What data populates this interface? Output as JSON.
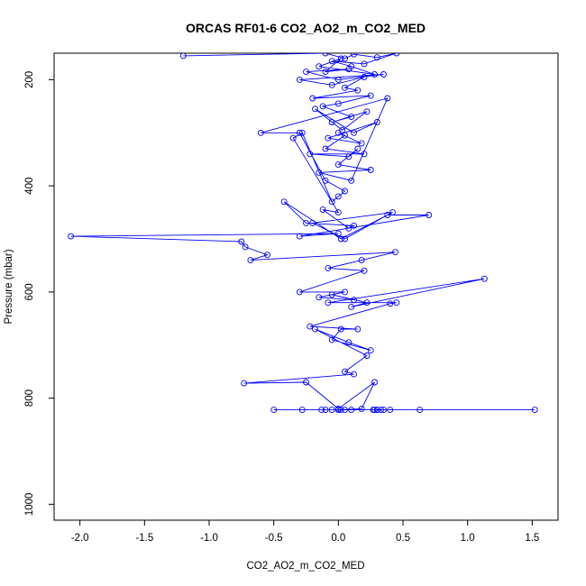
{
  "chart_data": {
    "type": "line",
    "title": "ORCAS RF01-6 CO2_AO2_m_CO2_MED",
    "xlabel": "CO2_AO2_m_CO2_MED",
    "ylabel": "Pressure (mbar)",
    "xlim": [
      -2.2,
      1.7
    ],
    "ylim": [
      1030,
      150
    ],
    "y_reversed": true,
    "xticks": [
      -2.0,
      -1.5,
      -1.0,
      -0.5,
      0.0,
      0.5,
      1.0,
      1.5
    ],
    "xtick_labels": [
      "-2.0",
      "-1.5",
      "-1.0",
      "-0.5",
      "0.0",
      "0.5",
      "1.0",
      "1.5"
    ],
    "yticks": [
      200,
      400,
      600,
      800,
      1000
    ],
    "ytick_labels": [
      "200",
      "400",
      "600",
      "800",
      "1000"
    ],
    "series_color": "#0000ff",
    "marker": "open-circle",
    "grid": false,
    "series": [
      {
        "x": [
          -1.2,
          -0.1,
          0.05,
          0.12,
          0.3,
          0.45,
          0.2,
          -0.05,
          0.1,
          0.28,
          -0.15,
          0.02,
          -0.1,
          0.08,
          -0.25,
          0.0,
          0.35,
          -0.3,
          -0.05,
          0.2,
          0.05,
          0.15,
          -0.2,
          0.25,
          0.0,
          -0.12,
          0.1,
          -0.05,
          0.22,
          0.03,
          -0.18,
          0.12,
          0.3,
          -0.08,
          0.18,
          0.0,
          0.05,
          -0.1,
          0.2,
          -0.22,
          0.08,
          0.15,
          0.0,
          0.25,
          -0.15,
          0.1,
          0.38,
          -0.6,
          -0.3,
          -0.1,
          0.05,
          0.0,
          -0.05,
          -0.28,
          -0.35,
          0.0,
          -0.12,
          0.08,
          0.12,
          -0.25,
          -0.42,
          0.02,
          0.42,
          -0.2,
          0.05,
          0.38,
          0.7,
          -0.3,
          0.0,
          -2.07,
          -0.75,
          -0.72,
          -0.55,
          -0.68,
          0.44,
          0.18,
          -0.08,
          0.2,
          -0.3,
          0.05,
          -0.15,
          0.12,
          -0.05,
          0.22,
          0.1,
          1.13,
          -0.08,
          0.45,
          0.4,
          -0.22,
          0.15,
          0.02,
          -0.05,
          0.25,
          0.08,
          -0.18,
          0.22,
          0.05,
          0.12,
          -0.73,
          -0.25,
          0.0,
          0.28,
          0.18,
          0.0,
          -0.5,
          -0.28,
          0.3,
          0.63,
          1.52,
          0.35,
          0.28,
          -0.13,
          -0.05,
          0.02,
          0.33,
          0.1,
          0.4,
          -0.1,
          0.05,
          0.3,
          0.27
        ],
        "y": [
          155,
          150,
          160,
          152,
          158,
          150,
          170,
          165,
          175,
          190,
          175,
          160,
          185,
          180,
          185,
          200,
          190,
          200,
          210,
          195,
          215,
          220,
          235,
          230,
          245,
          250,
          270,
          280,
          260,
          295,
          255,
          300,
          280,
          310,
          320,
          300,
          305,
          330,
          340,
          340,
          345,
          330,
          360,
          370,
          375,
          390,
          235,
          300,
          300,
          390,
          410,
          420,
          430,
          300,
          310,
          450,
          445,
          480,
          475,
          470,
          430,
          500,
          450,
          470,
          500,
          455,
          455,
          495,
          490,
          495,
          505,
          515,
          530,
          540,
          525,
          540,
          555,
          560,
          600,
          600,
          610,
          615,
          605,
          620,
          628,
          575,
          620,
          620,
          622,
          665,
          670,
          670,
          690,
          710,
          695,
          670,
          720,
          750,
          755,
          772,
          770,
          820,
          770,
          820,
          822,
          822,
          822,
          822,
          822,
          822,
          822,
          822,
          822,
          822,
          822,
          822,
          822,
          822,
          822,
          822,
          822,
          822
        ]
      }
    ]
  }
}
